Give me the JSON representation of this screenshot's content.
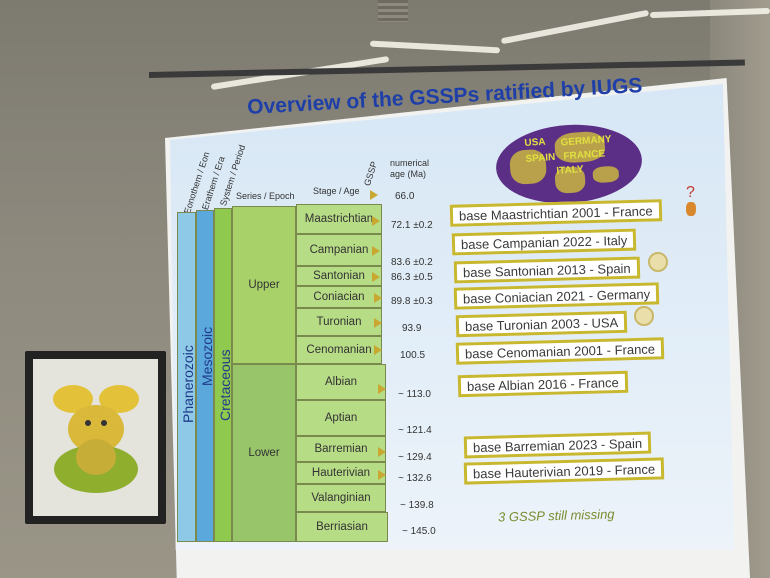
{
  "title": "Overview of the GSSPs ratified by IUGS",
  "globe_labels": [
    "USA",
    "GERMANY",
    "SPAIN",
    "FRANCE",
    "ITALY"
  ],
  "headers": {
    "eonothem": "Eonothem / Eon",
    "erathem": "Erathem / Era",
    "system": "System / Period",
    "series": "Series / Epoch",
    "stage": "Stage / Age",
    "gssp": "GSSP",
    "numerical_age": "numerical age (Ma)"
  },
  "eon": "Phanerozoic",
  "era": "Mesozoic",
  "period": "Cretaceous",
  "epochs": [
    "Upper",
    "Lower"
  ],
  "stages": [
    "Maastrichtian",
    "Campanian",
    "Santonian",
    "Coniacian",
    "Turonian",
    "Cenomanian",
    "Albian",
    "Aptian",
    "Barremian",
    "Hauterivian",
    "Valanginian",
    "Berriasian"
  ],
  "ages": [
    "66.0",
    "72.1 ±0.2",
    "83.6 ±0.2",
    "86.3 ±0.5",
    "89.8 ±0.3",
    "93.9",
    "100.5",
    "~ 113.0",
    "~ 121.4",
    "~ 129.4",
    "~ 132.6",
    "~ 139.8",
    "~ 145.0"
  ],
  "boxes": [
    "base Maastrichtian 2001 - France",
    "base Campanian 2022 - Italy",
    "base Santonian 2013 - Spain",
    "base Coniacian 2021 - Germany",
    "base Turonian 2003 - USA",
    "base Cenomanian 2001 - France",
    "base Albian 2016 - France",
    "base Barremian 2023 - Spain",
    "base Hauterivian 2019 - France"
  ],
  "missing_note": "3 GSSP still missing",
  "question_mark": "?",
  "colors": {
    "phanerozoic": "#8ec9e8",
    "mesozoic": "#5ba8dc",
    "cretaceous": "#8fc94e",
    "upper": "#a8d16a",
    "lower": "#98c56a",
    "stage": "#b7dc86",
    "box_border": "#c8b830",
    "title": "#1f3fa8"
  }
}
